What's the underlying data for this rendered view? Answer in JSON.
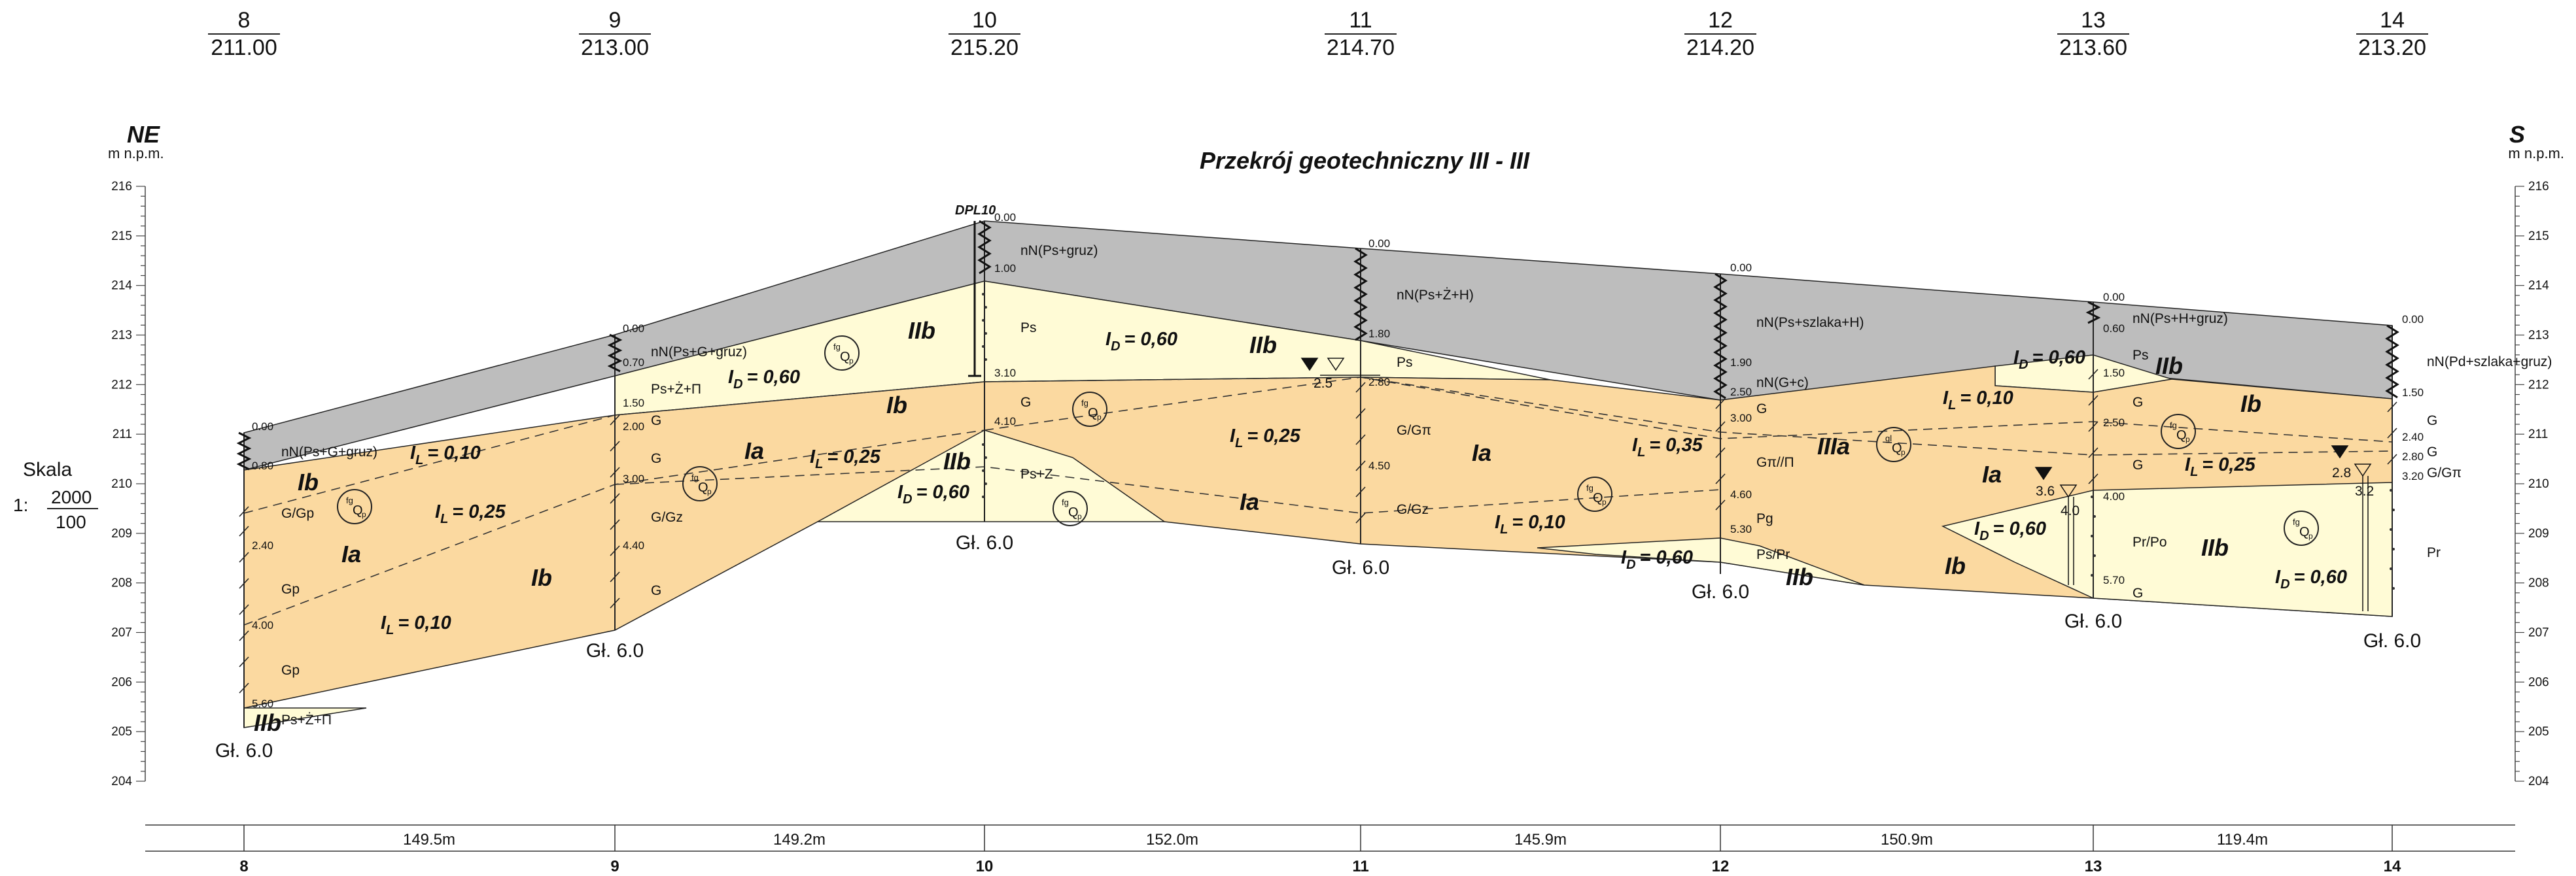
{
  "title": "Przekrój geotechniczny III - III",
  "left_direction": "NE",
  "right_direction": "S",
  "axis_unit": "m n.p.m.",
  "scale": {
    "label": "Skala",
    "prefix": "1:",
    "numerator": "2000",
    "denominator": "100"
  },
  "elevation_axis": {
    "min": 204,
    "max": 216,
    "ticks": [
      "216",
      "215",
      "214",
      "213",
      "212",
      "211",
      "210",
      "209",
      "208",
      "207",
      "206",
      "205",
      "204"
    ]
  },
  "boreholes": [
    {
      "id": "8",
      "elevation": "211.00",
      "depth_label": "Gł. 6.0"
    },
    {
      "id": "9",
      "elevation": "213.00",
      "depth_label": "Gł. 6.0"
    },
    {
      "id": "10",
      "elevation": "215.20",
      "depth_label": "Gł. 6.0",
      "tag": "DPL10"
    },
    {
      "id": "11",
      "elevation": "214.70",
      "depth_label": "Gł. 6.0"
    },
    {
      "id": "12",
      "elevation": "214.20",
      "depth_label": "Gł. 6.0"
    },
    {
      "id": "13",
      "elevation": "213.60",
      "depth_label": "Gł. 6.0"
    },
    {
      "id": "14",
      "elevation": "213.20",
      "depth_label": "Gł. 6.0"
    }
  ],
  "distances": [
    "149.5m",
    "149.2m",
    "152.0m",
    "145.9m",
    "150.9m",
    "119.4m"
  ],
  "depth_marks": {
    "b8": [
      "0.00",
      "0.80",
      "2.40",
      "4.00",
      "5.60"
    ],
    "b9": [
      "0.00",
      "0.70",
      "1.50",
      "2.00",
      "3.00",
      "4.40"
    ],
    "b10": [
      "0.00",
      "1.00",
      "3.10",
      "4.10"
    ],
    "b11": [
      "0.00",
      "1.80",
      "2.80",
      "4.50"
    ],
    "b12": [
      "0.00",
      "1.90",
      "2.50",
      "3.00",
      "4.60",
      "5.30"
    ],
    "b13": [
      "0.00",
      "0.60",
      "1.50",
      "2.50",
      "4.00",
      "5.70"
    ],
    "b14": [
      "0.00",
      "1.50",
      "2.40",
      "2.80",
      "3.20"
    ]
  },
  "soil_labels": {
    "b8": [
      "nN(Ps+G+gruz)",
      "G/Gp",
      "Gp",
      "Gp",
      "Ps+Ż+Π"
    ],
    "b9": [
      "nN(Ps+G+gruz)",
      "Ps+Ż+Π",
      "G",
      "G",
      "G/Gz",
      "G"
    ],
    "b10": [
      "nN(Ps+gruz)",
      "Ps",
      "G",
      "Ps+Z"
    ],
    "b11": [
      "nN(Ps+Ż+H)",
      "Ps",
      "G/Gπ",
      "G/Gz"
    ],
    "b12": [
      "nN(Ps+szlaka+H)",
      "nN(G+c)",
      "G",
      "Gπ//Π",
      "Pg",
      "Ps/Pr"
    ],
    "b13": [
      "nN(Ps+H+gruz)",
      "Ps",
      "G",
      "G",
      "Pr/Po",
      "G"
    ],
    "b14": [
      "nN(Pd+szlaka+gruz)",
      "G",
      "G",
      "G/Gπ",
      "Pr"
    ]
  },
  "groundwater": {
    "b11": "2.5",
    "b13_a": "3.6",
    "b13_b": "4.0",
    "b14_a": "2.8",
    "b14_b": "3.2"
  },
  "zones": [
    "IIb",
    "Ib",
    "Ia",
    "IIb",
    "Ib",
    "Ia",
    "IIb",
    "Ib",
    "Ia",
    "IIb",
    "Ia",
    "IIb",
    "IIb",
    "IIIa",
    "Ib",
    "Ia",
    "IIb",
    "Ib",
    "Ib",
    "IIb",
    "IIb"
  ],
  "indices": {
    "z1": "0,10",
    "z2": "0,25",
    "z3": "0,10",
    "z4": "0,60",
    "z5": "0,25",
    "z6": "0,60",
    "z7": "0,60",
    "z8": "0,25",
    "z9": "0,35",
    "z10": "0,10",
    "z11": "0,60",
    "z12": "0,60",
    "z13": "0,10",
    "z14": "0,25",
    "z15": "0,60",
    "z16": "0,60"
  },
  "genesis": {
    "g1": "Q",
    "g2": "Q",
    "g3": "Q",
    "g4": "Q",
    "g5": "Q",
    "g6": "Q",
    "g7": "Q",
    "g8": "Q",
    "g9": "Q"
  },
  "genesis_sup": {
    "a": "fg",
    "b": "fg",
    "c": "fg",
    "d": "fg",
    "e": "fg",
    "f": "gl",
    "g": "fg",
    "h": "fg",
    "i": "fg"
  },
  "genesis_sub": "p",
  "index_letters": {
    "I": "I",
    "L": "L",
    "D": "D",
    "eq": "= "
  },
  "colors": {
    "fill_gray": "#bdbdbd",
    "fill_light": "#fffbd6",
    "fill_orange": "#fbd9a0",
    "line": "#222222"
  }
}
